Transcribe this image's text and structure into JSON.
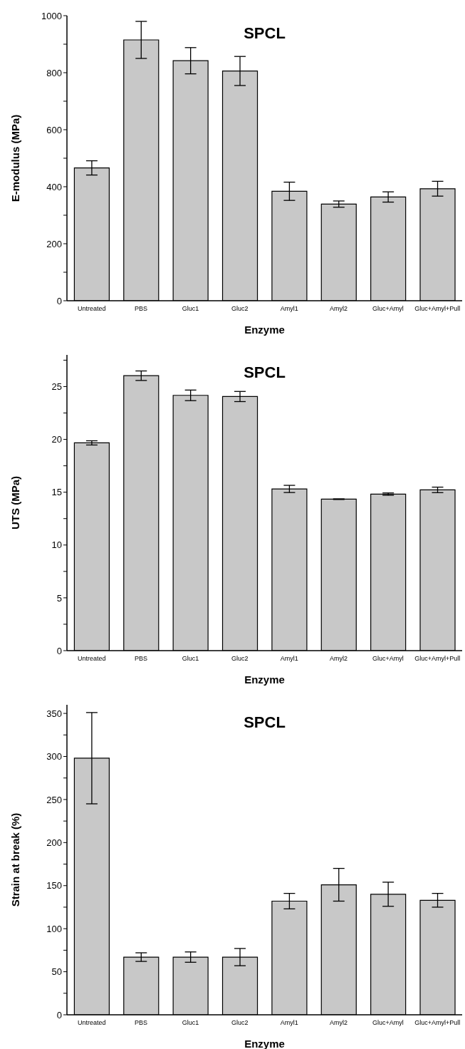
{
  "chart_data": [
    {
      "type": "bar",
      "title": "SPCL",
      "xlabel": "Enzyme",
      "ylabel": "E-modulus (MPa)",
      "categories": [
        "Untreated",
        "PBS",
        "Gluc1",
        "Gluc2",
        "Amyl1",
        "Amyl2",
        "Gluc+Amyl",
        "Gluc+Amyl+Pull"
      ],
      "values": [
        466,
        915,
        842,
        806,
        384,
        339,
        364,
        393
      ],
      "errors": [
        25,
        65,
        46,
        51,
        32,
        11,
        18,
        26
      ],
      "color": "#c8c8c8",
      "ylim": [
        0,
        1000
      ],
      "yticks": [
        0,
        {
          "value": 100,
          "label": null
        },
        200,
        {
          "value": 300,
          "label": null
        },
        400,
        {
          "value": 500,
          "label": null
        },
        600,
        {
          "value": 700,
          "label": null
        },
        800,
        {
          "value": 900,
          "label": null
        },
        1000
      ]
    },
    {
      "type": "bar",
      "title": "SPCL",
      "xlabel": "Enzyme",
      "ylabel": "UTS (MPa)",
      "categories": [
        "Untreated",
        "PBS",
        "Gluc1",
        "Gluc2",
        "Amyl1",
        "Amyl2",
        "Gluc+Amyl",
        "Gluc+Amyl+Pull"
      ],
      "values": [
        19.67,
        26.03,
        24.17,
        24.06,
        15.31,
        14.34,
        14.82,
        15.22
      ],
      "errors": [
        0.2,
        0.45,
        0.5,
        0.48,
        0.34,
        0.03,
        0.11,
        0.26
      ],
      "color": "#c8c8c8",
      "ylim": [
        0,
        28
      ],
      "yticks": [
        0,
        {
          "value": 2.5,
          "label": null
        },
        5,
        {
          "value": 7.5,
          "label": null
        },
        10,
        {
          "value": 12.5,
          "label": null
        },
        15,
        {
          "value": 17.5,
          "label": null
        },
        20,
        {
          "value": 22.5,
          "label": null
        },
        25,
        {
          "value": 27.5,
          "label": null
        }
      ]
    },
    {
      "type": "bar",
      "title": "SPCL",
      "xlabel": "Enzyme",
      "ylabel": "Strain at break (%)",
      "categories": [
        "Untreated",
        "PBS",
        "Gluc1",
        "Gluc2",
        "Amyl1",
        "Amyl2",
        "Gluc+Amyl",
        "Gluc+Amyl+Pull"
      ],
      "values": [
        298,
        67,
        67,
        67,
        132,
        151,
        140,
        133
      ],
      "errors": [
        53,
        5,
        6,
        10,
        9,
        19,
        14,
        8
      ],
      "color": "#c8c8c8",
      "ylim": [
        0,
        360
      ],
      "yticks": [
        0,
        {
          "value": 25,
          "label": null
        },
        50,
        {
          "value": 75,
          "label": null
        },
        100,
        {
          "value": 125,
          "label": null
        },
        150,
        {
          "value": 175,
          "label": null
        },
        200,
        {
          "value": 225,
          "label": null
        },
        250,
        {
          "value": 275,
          "label": null
        },
        300,
        {
          "value": 325,
          "label": null
        },
        350
      ]
    }
  ]
}
